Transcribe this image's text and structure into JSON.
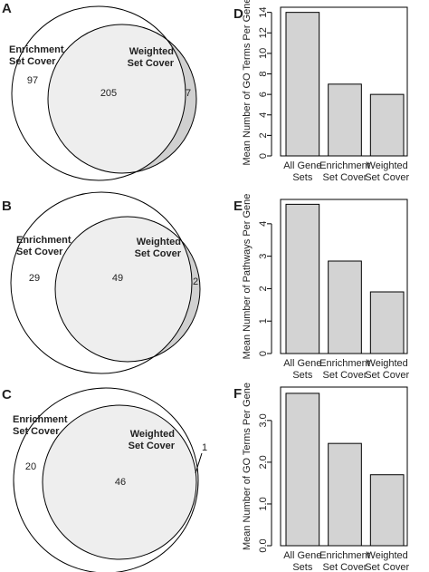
{
  "chart_data": [
    {
      "type": "venn",
      "label": "A",
      "sets": [
        [
          "Enrichment",
          "Set Cover"
        ],
        [
          "Weighted",
          "Set Cover"
        ]
      ],
      "counts": [
        97,
        205,
        7
      ]
    },
    {
      "type": "venn",
      "label": "B",
      "sets": [
        [
          "Enrichment",
          "Set Cover"
        ],
        [
          "Weighted",
          "Set Cover"
        ]
      ],
      "counts": [
        29,
        49,
        2
      ]
    },
    {
      "type": "venn",
      "label": "C",
      "sets": [
        [
          "Enrichment",
          "Set Cover"
        ],
        [
          "Weighted",
          "Set Cover"
        ]
      ],
      "counts": [
        20,
        46,
        1
      ]
    },
    {
      "type": "bar",
      "label": "D",
      "y_label": "Mean Number of GO Terms Per Gene",
      "categories": [
        [
          "All Gene",
          "Sets"
        ],
        [
          "Enrichment",
          "Set Cover"
        ],
        [
          "Weighted",
          "Set Cover"
        ]
      ],
      "values": [
        14,
        7,
        6
      ],
      "color": "#d3d3d3",
      "ylim": [
        0,
        14.5
      ],
      "yticks": [
        0,
        2,
        4,
        6,
        8,
        10,
        12,
        14
      ]
    },
    {
      "type": "bar",
      "label": "E",
      "y_label": "Mean Number of Pathways Per Gene",
      "categories": [
        [
          "All Gene",
          "Sets"
        ],
        [
          "Enrichment",
          "Set Cover"
        ],
        [
          "Weighted",
          "Set Cover"
        ]
      ],
      "values": [
        4.6,
        2.85,
        1.9
      ],
      "color": "#d3d3d3",
      "ylim": [
        0,
        4.75
      ],
      "yticks": [
        0,
        1,
        2,
        3,
        4
      ]
    },
    {
      "type": "bar",
      "label": "F",
      "y_label": "Mean Number of GO Terms Per Gene",
      "categories": [
        [
          "All Gene",
          "Sets"
        ],
        [
          "Enrichment",
          "Set Cover"
        ],
        [
          "Weighted",
          "Set Cover"
        ]
      ],
      "values": [
        3.65,
        2.45,
        1.7
      ],
      "color": "#d3d3d3",
      "ylim": [
        0,
        3.8
      ],
      "yticks": [
        {
          "value": 0,
          "label": "0.0"
        },
        {
          "value": 1,
          "label": "1.0"
        },
        {
          "value": 2,
          "label": "2.0"
        },
        {
          "value": 3,
          "label": "3.0"
        }
      ]
    }
  ]
}
